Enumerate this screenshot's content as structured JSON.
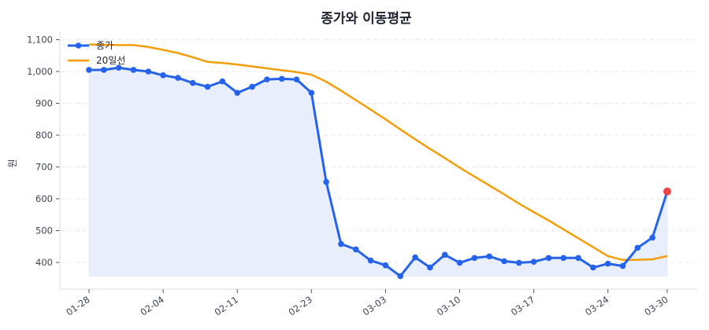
{
  "chart_data": {
    "type": "line",
    "title": "종가와 이동평균",
    "xlabel": "",
    "ylabel": "원",
    "ylim": [
      330,
      1125
    ],
    "yticks": [
      400,
      500,
      600,
      700,
      800,
      900,
      1000,
      1100
    ],
    "ytick_labels": [
      "400",
      "500",
      "600",
      "700",
      "800",
      "900",
      "1,000",
      "1,100"
    ],
    "grid": "horizontal dashed",
    "legend_position": "upper left",
    "x_tick_labels": [
      {
        "label": "01-28",
        "index": 0
      },
      {
        "label": "02-04",
        "index": 5
      },
      {
        "label": "02-11",
        "index": 10
      },
      {
        "label": "02-23",
        "index": 15
      },
      {
        "label": "03-03",
        "index": 20
      },
      {
        "label": "03-10",
        "index": 25
      },
      {
        "label": "03-17",
        "index": 30
      },
      {
        "label": "03-24",
        "index": 35
      },
      {
        "label": "03-30",
        "index": 39
      }
    ],
    "series": [
      {
        "name": "종가",
        "color": "#2563eb",
        "marker": "circle",
        "fill": "#e8eefb",
        "values": [
          1005,
          1005,
          1012,
          1005,
          1000,
          988,
          980,
          964,
          952,
          969,
          933,
          952,
          975,
          977,
          975,
          933,
          653,
          458,
          441,
          406,
          391,
          357,
          416,
          384,
          424,
          399,
          414,
          419,
          404,
          399,
          402,
          414,
          414,
          414,
          384,
          396,
          389,
          446,
          478,
          623
        ],
        "last_point_highlight": "#ef4444"
      },
      {
        "name": "20일선",
        "color": "#f59e0b",
        "values": [
          1085,
          1084,
          1083,
          1083,
          1077,
          1068,
          1058,
          1045,
          1030,
          1027,
          1022,
          1016,
          1010,
          1004,
          998,
          990,
          968,
          940,
          910,
          880,
          850,
          818,
          787,
          757,
          728,
          698,
          670,
          642,
          614,
          585,
          558,
          532,
          504,
          476,
          448,
          420,
          408,
          408,
          410,
          420
        ]
      }
    ]
  }
}
